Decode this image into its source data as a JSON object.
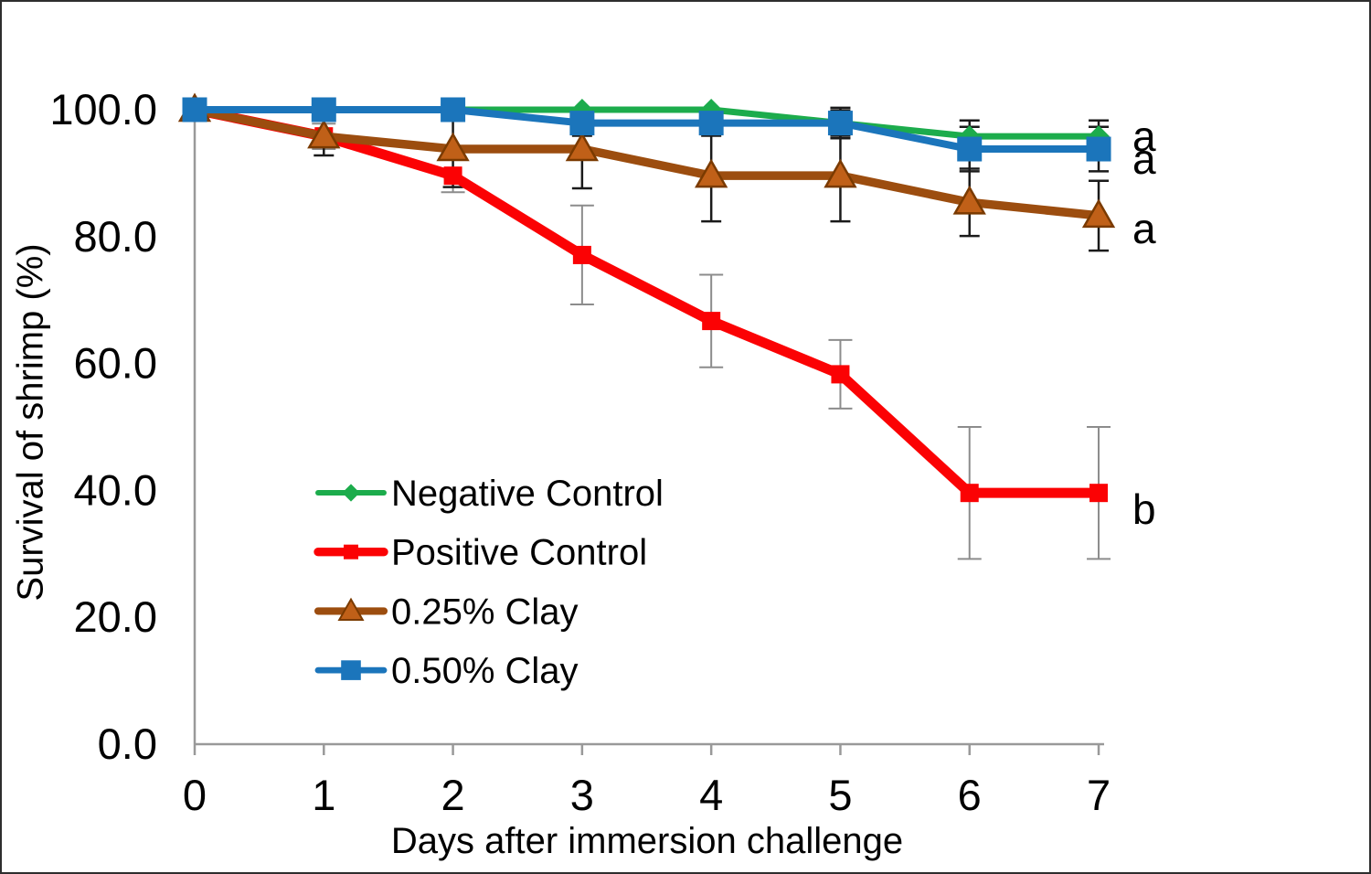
{
  "figure": {
    "background": "#ffffff",
    "border_color": "#2e2e2e"
  },
  "chart_data": {
    "type": "line",
    "title": "",
    "xlabel": "Days after immersion challenge",
    "ylabel": "Survival of shrimp (%)",
    "x": [
      0,
      1,
      2,
      3,
      4,
      5,
      6,
      7
    ],
    "xtick_labels": [
      "0",
      "1",
      "2",
      "3",
      "4",
      "5",
      "6",
      "7"
    ],
    "xlim": [
      0,
      7
    ],
    "ylim": [
      0,
      100
    ],
    "yticks": [
      0,
      20,
      40,
      60,
      80,
      100
    ],
    "ytick_labels": [
      "0.0",
      "20.0",
      "40.0",
      "60.0",
      "80.0",
      "100.0"
    ],
    "grid": false,
    "legend_position": "inside lower-left",
    "axis_color": "#999999",
    "text_color": "#000000",
    "series": [
      {
        "name": "Negative Control",
        "color": "#1CAC4C",
        "marker": "diamond",
        "values": [
          100,
          100,
          100,
          100,
          100,
          97.9,
          95.8,
          95.8
        ],
        "errors": [
          0,
          0,
          0,
          0,
          0,
          2.4,
          2.5,
          2.5
        ],
        "error_color": "#1a1a1a",
        "annotation": "a",
        "annotation_y": 95.8
      },
      {
        "name": "Positive Control",
        "color": "#FB0204",
        "marker": "square-small",
        "values": [
          100,
          95.8,
          89.6,
          77.1,
          66.7,
          58.3,
          39.6,
          39.6
        ],
        "errors": [
          0,
          2.0,
          2.6,
          7.8,
          7.3,
          5.4,
          10.4,
          10.4
        ],
        "error_color": "#8c8c8c",
        "annotation": "b",
        "annotation_y": 37.0
      },
      {
        "name": "0.25% Clay",
        "color": "#9C4D0F",
        "marker": "triangle",
        "marker_fill": "#C06018",
        "marker_edge": "#7A3A00",
        "values": [
          100,
          95.8,
          93.8,
          93.8,
          89.6,
          89.6,
          85.4,
          83.3
        ],
        "errors": [
          0,
          3.0,
          6.0,
          6.2,
          7.2,
          7.2,
          5.3,
          5.5
        ],
        "error_color": "#1a1a1a",
        "annotation": "a",
        "annotation_y": 81.3
      },
      {
        "name": "0.50% Clay",
        "color": "#1B75BB",
        "marker": "square-large",
        "values": [
          100,
          100,
          100,
          97.9,
          97.9,
          97.9,
          93.8,
          93.8
        ],
        "errors": [
          0,
          0,
          0,
          2.0,
          2.0,
          2.0,
          3.5,
          3.5
        ],
        "error_color": "#1a1a1a",
        "annotation": "a",
        "annotation_y": 92.2
      }
    ]
  }
}
